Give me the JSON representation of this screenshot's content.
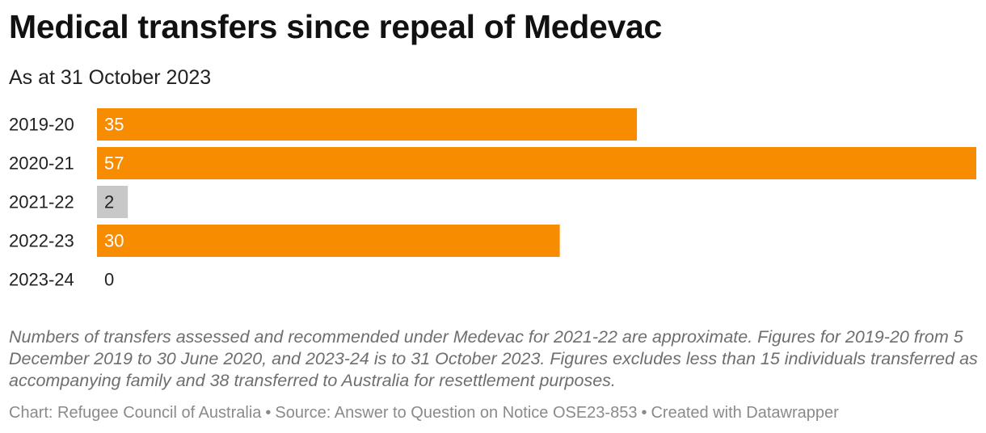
{
  "title": "Medical transfers since repeal of Medevac",
  "subtitle": "As at 31 October 2023",
  "chart_data": {
    "type": "bar",
    "orientation": "horizontal",
    "categories": [
      "2019-20",
      "2020-21",
      "2021-22",
      "2022-23",
      "2023-24"
    ],
    "values": [
      35,
      57,
      2,
      30,
      0
    ],
    "value_labels": [
      "35",
      "57",
      "2",
      "30",
      "0"
    ],
    "colors": [
      "#f78c00",
      "#f78c00",
      "#c8c8c8",
      "#f78c00",
      "#f78c00"
    ],
    "xlim": [
      0,
      57
    ],
    "grid": false,
    "legend": "none"
  },
  "notes": "Numbers of transfers assessed and recommended under Medevac for 2021-22 are approximate. Figures for 2019-20 from 5 December 2019 to 30 June 2020, and 2023-24 is to 31 October 2023. Figures excludes less than 15 individuals transferred as accompanying family and 38 transferred to Australia for resettlement purposes.",
  "footer": {
    "chart_credit": "Chart: Refugee Council of Australia",
    "source": "Source: Answer to Question on Notice OSE23-853",
    "created_with": "Created with Datawrapper",
    "separator": "•"
  }
}
